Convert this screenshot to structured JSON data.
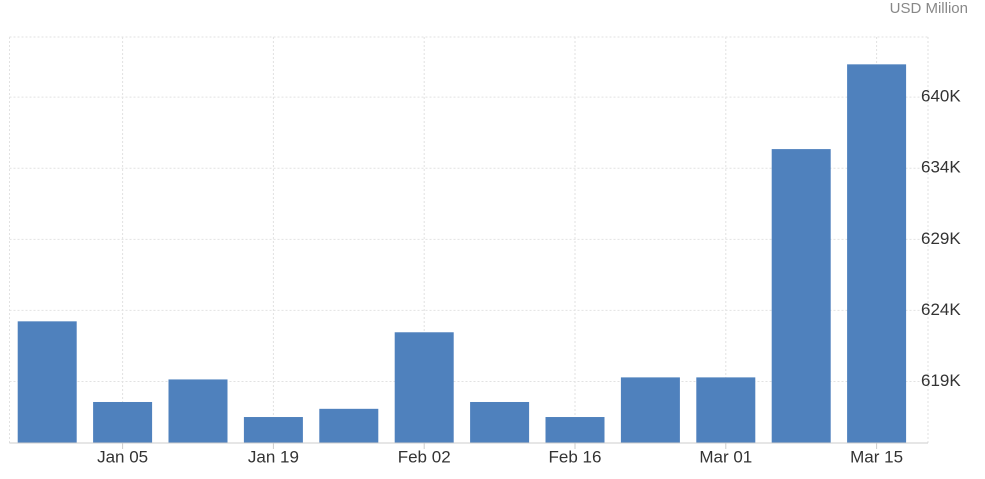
{
  "chart_data": {
    "type": "bar",
    "unit_label": "USD Million",
    "categories": [
      null,
      "Jan 05",
      null,
      "Jan 19",
      null,
      "Feb 02",
      null,
      "Feb 16",
      null,
      "Mar 01",
      null,
      "Mar 15"
    ],
    "values": [
      623200,
      617300,
      618950,
      616200,
      616800,
      622400,
      617300,
      616200,
      619100,
      619100,
      635800,
      642000
    ],
    "color": "#4f81bd",
    "ylim": [
      614300,
      644000
    ],
    "yticks": [
      {
        "value": 618800,
        "label": "619K"
      },
      {
        "value": 624000,
        "label": "624K"
      },
      {
        "value": 629200,
        "label": "629K"
      },
      {
        "value": 634400,
        "label": "634K"
      },
      {
        "value": 639600,
        "label": "640K"
      }
    ],
    "grid": true
  }
}
